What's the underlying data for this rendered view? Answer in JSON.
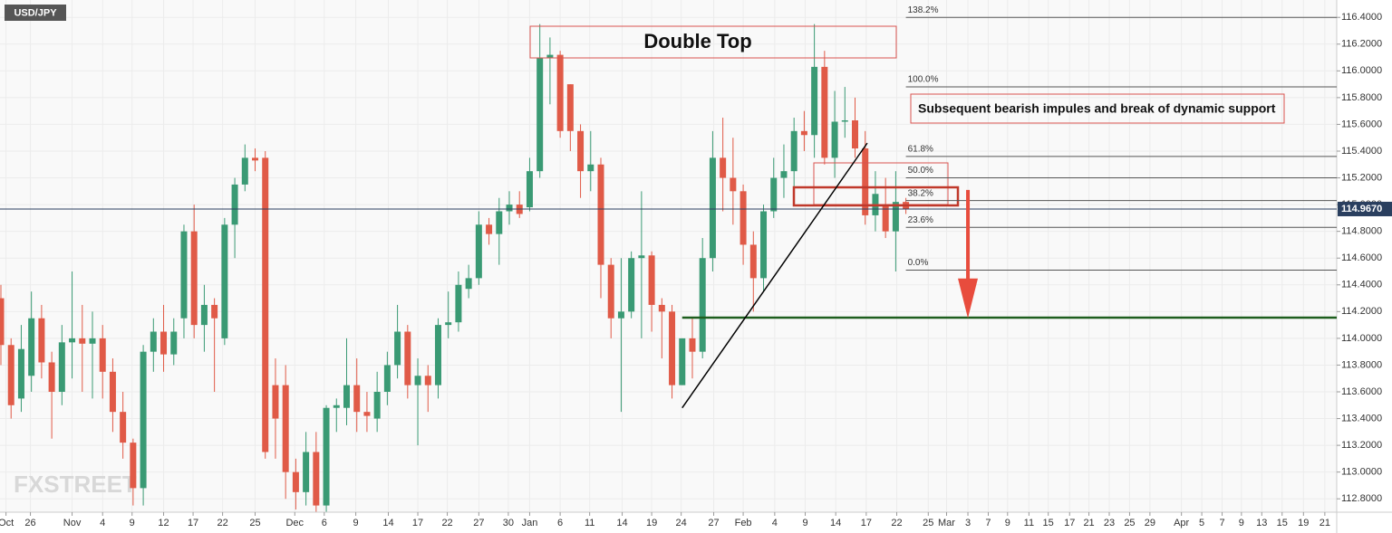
{
  "chart_data": {
    "type": "candlestick",
    "symbol": "USD/JPY",
    "watermark": "FXSTREET",
    "up_color": "#3a9a74",
    "down_color": "#e05a47",
    "grid": true,
    "xlim": [
      -0.09,
      131.37
    ],
    "ylim": [
      112.7,
      116.53
    ],
    "yticks": [
      {
        "value": 116.4,
        "label": "116.4000"
      },
      {
        "value": 116.2,
        "label": "116.2000"
      },
      {
        "value": 116.0,
        "label": "116.0000"
      },
      {
        "value": 115.8,
        "label": "115.8000"
      },
      {
        "value": 115.6,
        "label": "115.6000"
      },
      {
        "value": 115.4,
        "label": "115.4000"
      },
      {
        "value": 115.2,
        "label": "115.2000"
      },
      {
        "value": 115.0,
        "label": "115.0000"
      },
      {
        "value": 114.8,
        "label": "114.8000"
      },
      {
        "value": 114.6,
        "label": "114.6000"
      },
      {
        "value": 114.4,
        "label": "114.4000"
      },
      {
        "value": 114.2,
        "label": "114.2000"
      },
      {
        "value": 114.0,
        "label": "114.0000"
      },
      {
        "value": 113.8,
        "label": "113.8000"
      },
      {
        "value": 113.6,
        "label": "113.6000"
      },
      {
        "value": 113.4,
        "label": "113.4000"
      },
      {
        "value": 113.2,
        "label": "113.2000"
      },
      {
        "value": 113.0,
        "label": "113.0000"
      },
      {
        "value": 112.8,
        "label": "112.8000"
      }
    ],
    "xticks": [
      {
        "value": 0.5,
        "label": "Oct"
      },
      {
        "value": 2.9,
        "label": "26"
      },
      {
        "value": 7.0,
        "label": "Nov"
      },
      {
        "value": 10.0,
        "label": "4"
      },
      {
        "value": 12.9,
        "label": "9"
      },
      {
        "value": 16.0,
        "label": "12"
      },
      {
        "value": 18.9,
        "label": "17"
      },
      {
        "value": 21.8,
        "label": "22"
      },
      {
        "value": 25.0,
        "label": "25"
      },
      {
        "value": 28.9,
        "label": "Dec"
      },
      {
        "value": 31.8,
        "label": "6"
      },
      {
        "value": 34.9,
        "label": "9"
      },
      {
        "value": 38.1,
        "label": "14"
      },
      {
        "value": 41.0,
        "label": "17"
      },
      {
        "value": 43.9,
        "label": "22"
      },
      {
        "value": 47.0,
        "label": "27"
      },
      {
        "value": 49.9,
        "label": "30"
      },
      {
        "value": 52.0,
        "label": "Jan"
      },
      {
        "value": 55.0,
        "label": "6"
      },
      {
        "value": 57.9,
        "label": "11"
      },
      {
        "value": 61.1,
        "label": "14"
      },
      {
        "value": 64.0,
        "label": "19"
      },
      {
        "value": 66.9,
        "label": "24"
      },
      {
        "value": 70.1,
        "label": "27"
      },
      {
        "value": 73.0,
        "label": "Feb"
      },
      {
        "value": 76.1,
        "label": "4"
      },
      {
        "value": 79.1,
        "label": "9"
      },
      {
        "value": 82.1,
        "label": "14"
      },
      {
        "value": 85.1,
        "label": "17"
      },
      {
        "value": 88.1,
        "label": "22"
      },
      {
        "value": 91.2,
        "label": "25"
      },
      {
        "value": 93.0,
        "label": "Mar"
      },
      {
        "value": 95.1,
        "label": "3"
      },
      {
        "value": 97.1,
        "label": "7"
      },
      {
        "value": 99.0,
        "label": "9"
      },
      {
        "value": 101.1,
        "label": "11"
      },
      {
        "value": 103.0,
        "label": "15"
      },
      {
        "value": 105.1,
        "label": "17"
      },
      {
        "value": 107.0,
        "label": "21"
      },
      {
        "value": 109.0,
        "label": "23"
      },
      {
        "value": 111.0,
        "label": "25"
      },
      {
        "value": 113.0,
        "label": "29"
      },
      {
        "value": 116.1,
        "label": "Apr"
      },
      {
        "value": 118.1,
        "label": "5"
      },
      {
        "value": 120.1,
        "label": "7"
      },
      {
        "value": 122.0,
        "label": "9"
      },
      {
        "value": 124.0,
        "label": "13"
      },
      {
        "value": 126.0,
        "label": "15"
      },
      {
        "value": 128.1,
        "label": "19"
      },
      {
        "value": 130.2,
        "label": "21"
      }
    ],
    "open": [
      114.3,
      113.95,
      113.55,
      113.72,
      114.15,
      113.82,
      113.6,
      113.97,
      114.0,
      113.96,
      114.0,
      113.75,
      113.45,
      113.22,
      112.88,
      113.9,
      114.05,
      113.88,
      114.15,
      114.8,
      114.1,
      114.25,
      114.0,
      114.85,
      115.15,
      115.35,
      115.35,
      113.65,
      113.65,
      113.0,
      112.85,
      113.15,
      112.75,
      113.48,
      113.48,
      113.65,
      113.45,
      113.4,
      113.6,
      113.8,
      114.05,
      113.65,
      113.72,
      113.65,
      114.1,
      114.12,
      114.37,
      114.45,
      114.85,
      114.78,
      114.95,
      115.0,
      114.98,
      115.25,
      116.1,
      116.12,
      115.9,
      115.55,
      115.25,
      115.3,
      114.55,
      114.15,
      114.2,
      114.6,
      114.62,
      114.25,
      114.2,
      113.65,
      114.0,
      113.9,
      114.6,
      115.35,
      115.2,
      115.1,
      114.7,
      114.45,
      114.95,
      115.2,
      115.25,
      115.55,
      115.52,
      116.03,
      115.35,
      115.62,
      115.63,
      115.42,
      114.92,
      115.0,
      114.8,
      115.02
    ],
    "high": [
      114.4,
      114.0,
      114.1,
      114.35,
      114.25,
      113.9,
      114.1,
      114.5,
      114.25,
      114.2,
      114.1,
      113.85,
      113.6,
      113.25,
      113.95,
      114.15,
      114.25,
      114.15,
      114.85,
      115.0,
      114.4,
      114.3,
      114.9,
      115.2,
      115.45,
      115.42,
      115.4,
      113.85,
      113.8,
      113.1,
      113.3,
      113.3,
      113.5,
      113.55,
      114.0,
      113.85,
      113.6,
      113.75,
      113.9,
      114.25,
      114.1,
      113.85,
      113.8,
      114.15,
      114.35,
      114.5,
      114.55,
      114.95,
      114.9,
      115.05,
      115.1,
      115.1,
      115.35,
      116.35,
      116.25,
      116.15,
      115.9,
      115.6,
      115.55,
      115.35,
      114.6,
      114.6,
      114.65,
      115.1,
      114.65,
      114.3,
      114.25,
      114.0,
      114.15,
      114.75,
      115.55,
      115.65,
      115.5,
      115.15,
      114.8,
      115.0,
      115.35,
      115.45,
      115.65,
      115.7,
      116.35,
      116.15,
      115.85,
      115.88,
      115.8,
      115.55,
      115.25,
      115.2,
      115.25,
      115.05
    ],
    "low": [
      113.8,
      113.4,
      113.45,
      113.6,
      113.7,
      113.25,
      113.5,
      113.7,
      113.6,
      113.55,
      113.55,
      113.3,
      113.1,
      112.75,
      112.75,
      113.75,
      113.75,
      113.8,
      114.0,
      114.0,
      113.9,
      113.6,
      113.95,
      114.6,
      115.1,
      115.25,
      113.1,
      113.1,
      112.8,
      112.72,
      112.75,
      112.7,
      112.7,
      113.3,
      113.35,
      113.3,
      113.3,
      113.3,
      113.5,
      113.7,
      113.55,
      113.2,
      113.45,
      113.55,
      114.0,
      114.05,
      114.3,
      114.4,
      114.7,
      114.55,
      114.85,
      114.9,
      114.95,
      115.2,
      115.75,
      115.5,
      115.4,
      115.05,
      115.1,
      114.3,
      114.0,
      113.45,
      114.15,
      114.0,
      114.05,
      113.85,
      113.55,
      113.65,
      113.7,
      113.85,
      114.5,
      114.95,
      114.85,
      114.55,
      114.2,
      114.35,
      114.9,
      115.05,
      115.05,
      115.4,
      115.35,
      115.3,
      115.2,
      115.5,
      115.35,
      114.85,
      114.8,
      114.75,
      114.5,
      114.93
    ],
    "close": [
      113.95,
      113.5,
      113.92,
      114.15,
      113.82,
      113.6,
      113.97,
      114.0,
      113.96,
      114.0,
      113.75,
      113.45,
      113.22,
      112.88,
      113.9,
      114.05,
      113.88,
      114.05,
      114.8,
      114.1,
      114.25,
      114.15,
      114.85,
      115.15,
      115.35,
      115.33,
      113.15,
      113.4,
      113.0,
      112.85,
      113.15,
      112.75,
      113.48,
      113.5,
      113.65,
      113.45,
      113.42,
      113.6,
      113.8,
      114.05,
      113.65,
      113.72,
      113.65,
      114.1,
      114.12,
      114.4,
      114.45,
      114.85,
      114.78,
      114.95,
      115.0,
      114.93,
      115.25,
      116.1,
      116.12,
      115.55,
      115.55,
      115.25,
      115.3,
      114.55,
      114.15,
      114.2,
      114.6,
      114.62,
      114.25,
      114.2,
      113.65,
      114.0,
      113.9,
      114.6,
      115.35,
      115.2,
      115.1,
      114.7,
      114.45,
      114.95,
      115.2,
      115.25,
      115.55,
      115.52,
      116.03,
      115.35,
      115.62,
      115.63,
      115.42,
      114.92,
      115.08,
      114.8,
      115.02,
      114.97
    ],
    "current_price": {
      "value": 114.967,
      "label": "114.9670"
    },
    "fib_levels": [
      {
        "label": "138.2%",
        "value": 116.4
      },
      {
        "label": "100.0%",
        "value": 115.88
      },
      {
        "label": "61.8%",
        "value": 115.36
      },
      {
        "label": "50.0%",
        "value": 115.2
      },
      {
        "label": "38.2%",
        "value": 115.03
      },
      {
        "label": "23.6%",
        "value": 114.83
      },
      {
        "label": "0.0%",
        "value": 114.51
      }
    ],
    "support": {
      "x_start": 67,
      "value": 114.155
    },
    "trendline": {
      "x": [
        67,
        85.2
      ],
      "y": [
        113.48,
        115.46
      ]
    },
    "projection": {
      "x": 95.1,
      "y": [
        115.11,
        114.15
      ]
    },
    "annotations": [
      "Double Top",
      "Subsequent bearish impules and break of dynamic support"
    ]
  }
}
